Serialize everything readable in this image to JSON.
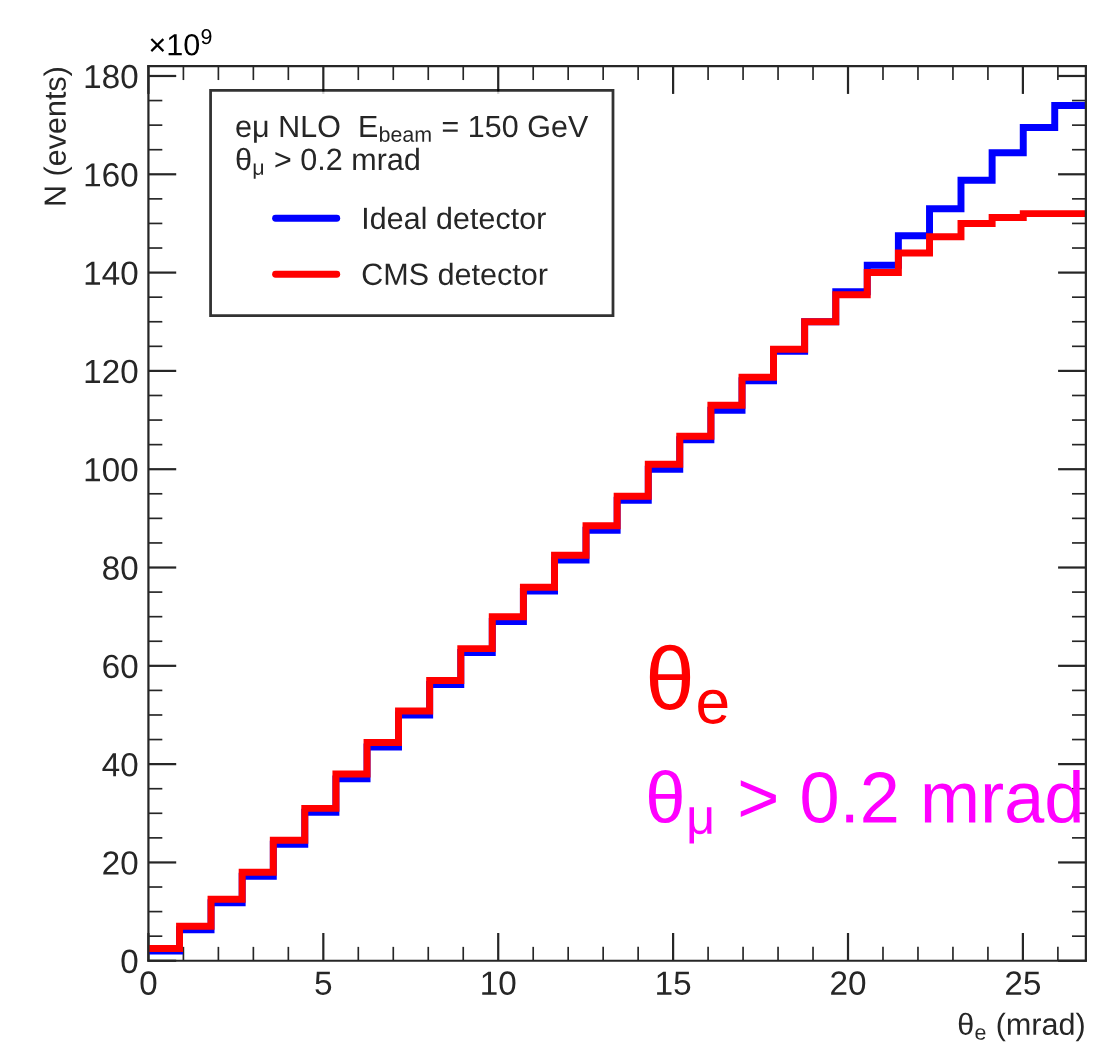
{
  "chart_data": {
    "type": "histogram",
    "xlabel": "θ$_{e}$ (mrad)",
    "ylabel": "N (events)",
    "legend_title": "eμ NLO  E$_{beam}$ = 150 GeV\nθ$_{μ}$ > 0.2 mrad",
    "bins": [
      0,
      0.89,
      1.79,
      2.68,
      3.57,
      4.47,
      5.36,
      6.25,
      7.15,
      8.04,
      8.93,
      9.83,
      10.72,
      11.61,
      12.51,
      13.4,
      14.29,
      15.19,
      16.08,
      16.97,
      17.87,
      18.76,
      19.65,
      20.55,
      21.44,
      22.33,
      23.23,
      24.12,
      25.01,
      25.91,
      26.8
    ],
    "series": [
      {
        "name": "Ideal detector",
        "color": "#0000ff",
        "values": [
          2,
          6.3,
          11.8,
          17.2,
          23.7,
          30.2,
          37,
          43.5,
          50,
          56.2,
          62.7,
          69,
          75.2,
          81.5,
          87.6,
          93.7,
          100,
          106,
          112,
          118,
          124,
          130,
          136.1,
          141.5,
          147.5,
          153,
          158.8,
          164.4,
          169.5,
          174
        ]
      },
      {
        "name": "CMS detector",
        "color": "#ff0000",
        "values": [
          2.5,
          7,
          12.5,
          18,
          24.5,
          31,
          38,
          44.4,
          50.8,
          57,
          63.5,
          70,
          76,
          82.5,
          88.5,
          94.5,
          101,
          106.7,
          113,
          118.7,
          124.4,
          130,
          135.5,
          140,
          144,
          147.3,
          150,
          151.2,
          152,
          152
        ]
      }
    ],
    "xlim": [
      0,
      26.8
    ],
    "xticks": [
      0,
      5,
      10,
      15,
      20,
      25
    ],
    "ylim": [
      0,
      182
    ],
    "yticks": [
      0,
      20,
      40,
      60,
      80,
      100,
      120,
      140,
      160,
      180
    ],
    "annotations": [
      "×10$^{9}$",
      "θ$_{e}$",
      "θ$_{μ}$ > 0.2 mrad"
    ],
    "legend": "top left",
    "grid": false
  }
}
